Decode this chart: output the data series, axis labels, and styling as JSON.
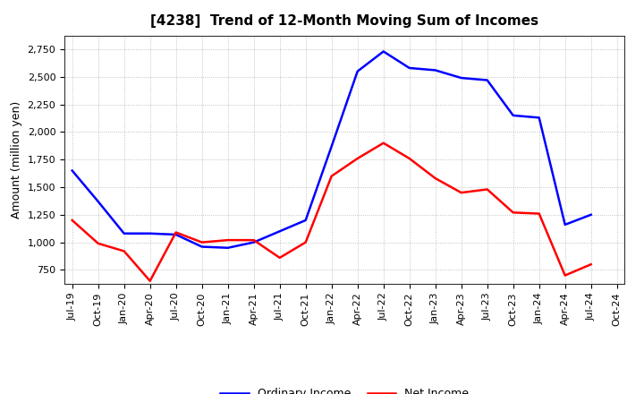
{
  "title": "[4238]  Trend of 12-Month Moving Sum of Incomes",
  "ylabel": "Amount (million yen)",
  "x_labels": [
    "Jul-19",
    "Oct-19",
    "Jan-20",
    "Apr-20",
    "Jul-20",
    "Oct-20",
    "Jan-21",
    "Apr-21",
    "Jul-21",
    "Oct-21",
    "Jan-22",
    "Apr-22",
    "Jul-22",
    "Oct-22",
    "Jan-23",
    "Apr-23",
    "Jul-23",
    "Oct-23",
    "Jan-24",
    "Apr-24",
    "Jul-24",
    "Oct-24"
  ],
  "ordinary_income": [
    1650,
    1370,
    1080,
    1080,
    1070,
    960,
    950,
    1000,
    1100,
    1200,
    1870,
    2550,
    2730,
    2580,
    2560,
    2490,
    2470,
    2150,
    2130,
    1160,
    1250,
    null
  ],
  "net_income": [
    1200,
    990,
    920,
    650,
    1090,
    1000,
    1020,
    1020,
    860,
    1000,
    1600,
    1760,
    1900,
    1760,
    1580,
    1450,
    1480,
    1270,
    1260,
    700,
    800,
    null
  ],
  "ordinary_color": "#0000FF",
  "net_color": "#FF0000",
  "ylim": [
    625,
    2875
  ],
  "yticks": [
    750,
    1000,
    1250,
    1500,
    1750,
    2000,
    2250,
    2500,
    2750
  ],
  "background_color": "#FFFFFF",
  "grid_color": "#AAAAAA",
  "title_fontsize": 11,
  "axis_fontsize": 8,
  "ylabel_fontsize": 9,
  "legend_labels": [
    "Ordinary Income",
    "Net Income"
  ],
  "line_width": 1.8
}
